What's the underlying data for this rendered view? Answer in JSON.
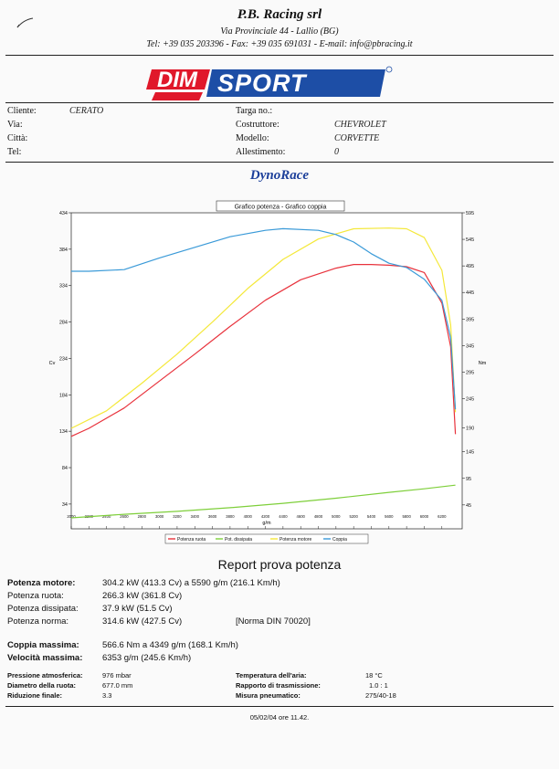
{
  "header": {
    "company": "P.B. Racing srl",
    "address": "Via Provinciale 44 - Lallio (BG)",
    "contacts": "Tel: +39 035 203396 - Fax: +39 035 691031 - E-mail: info@pbracing.it"
  },
  "logo": {
    "text": "DIMSPORT",
    "colors": {
      "red": "#e0182a",
      "blue": "#1d4ea6"
    }
  },
  "customer": {
    "fields": [
      {
        "label": "Cliente:",
        "value": "CERATO"
      },
      {
        "label": "Via:",
        "value": ""
      },
      {
        "label": "Città:",
        "value": ""
      },
      {
        "label": "Tel:",
        "value": ""
      }
    ]
  },
  "vehicle": {
    "fields": [
      {
        "label": "Targa no.:",
        "value": ""
      },
      {
        "label": "Costruttore:",
        "value": "CHEVROLET"
      },
      {
        "label": "Modello:",
        "value": "CORVETTE"
      },
      {
        "label": "Allestimento:",
        "value": "0"
      }
    ]
  },
  "section_title": "DynoRace",
  "chart_data": {
    "type": "line",
    "title": "Grafico potenza - Grafico coppia",
    "xlabel": "g/m",
    "ylabel_left": "Cv",
    "ylabel_right": "Nm",
    "x_ticks": [
      2000,
      2200,
      2400,
      2600,
      2800,
      3000,
      3200,
      3400,
      3600,
      3800,
      4000,
      4200,
      4400,
      4600,
      4800,
      5000,
      5200,
      5400,
      5600,
      5800,
      6000,
      6200
    ],
    "left_ticks": [
      434,
      384,
      334,
      284,
      234,
      184,
      134,
      84,
      34
    ],
    "right_ticks": [
      595,
      545,
      495,
      445,
      395,
      345,
      295,
      245,
      190,
      145,
      95,
      45
    ],
    "xlim": [
      2000,
      6430
    ],
    "ylim_left": [
      0,
      434
    ],
    "ylim_right": [
      0,
      595
    ],
    "grid": false,
    "legend_position": "bottom",
    "series": [
      {
        "name": "Potenza ruota",
        "axis": "left",
        "color": "#e8323c",
        "x": [
          2000,
          2200,
          2600,
          3000,
          3400,
          3800,
          4200,
          4600,
          5000,
          5200,
          5400,
          5600,
          5800,
          6000,
          6200,
          6300,
          6353
        ],
        "y": [
          127,
          138,
          166,
          203,
          240,
          278,
          314,
          342,
          358,
          363,
          363,
          362,
          360,
          352,
          310,
          250,
          130
        ]
      },
      {
        "name": "Pot. dissipata",
        "axis": "left",
        "color": "#7ecf3a",
        "x": [
          2000,
          2600,
          3200,
          3800,
          4400,
          5000,
          5600,
          6000,
          6353
        ],
        "y": [
          15,
          20,
          24,
          29,
          35,
          42,
          50,
          55,
          60
        ]
      },
      {
        "name": "Potenza motore",
        "axis": "left",
        "color": "#f4e83a",
        "x": [
          2000,
          2400,
          2800,
          3200,
          3600,
          4000,
          4400,
          4800,
          5200,
          5600,
          5800,
          6000,
          6200,
          6300,
          6353
        ],
        "y": [
          138,
          162,
          200,
          240,
          284,
          330,
          370,
          398,
          412,
          413,
          412,
          400,
          355,
          280,
          160
        ]
      },
      {
        "name": "Coppia",
        "axis": "right",
        "color": "#3a9ad8",
        "x": [
          2000,
          2200,
          2600,
          3000,
          3400,
          3800,
          4200,
          4400,
          4800,
          5000,
          5200,
          5400,
          5600,
          5800,
          6000,
          6200,
          6300,
          6353
        ],
        "y": [
          485,
          485,
          488,
          510,
          530,
          550,
          562,
          565,
          562,
          554,
          540,
          518,
          500,
          492,
          470,
          430,
          360,
          225
        ]
      }
    ]
  },
  "report": {
    "title": "Report prova potenza",
    "rows": [
      {
        "label": "Potenza motore:",
        "value": "304.2 kW (413.3 Cv) a 5590 g/m (216.1 Km/h)",
        "bold": true
      },
      {
        "label": "Potenza ruota:",
        "value": "266.3 kW (361.8 Cv)",
        "bold": false
      },
      {
        "label": "Potenza dissipata:",
        "value": "37.9 kW (51.5 Cv)",
        "bold": false
      },
      {
        "label": "Potenza norma:",
        "value": "314.6 kW (427.5 Cv)",
        "bold": false,
        "extra": "[Norma DIN 70020]"
      }
    ],
    "rows2": [
      {
        "label": "Coppia massima:",
        "value": "566.6 Nm a 4349 g/m (168.1 Km/h)"
      },
      {
        "label": "Velocità massima:",
        "value": "6353 g/m (245.6 Km/h)"
      }
    ],
    "conditions_left": [
      {
        "label": "Pressione atmosferica:",
        "value": "976 mbar"
      },
      {
        "label": "Diametro della ruota:",
        "value": "677.0 mm"
      },
      {
        "label": "Riduzione finale:",
        "value": "3.3"
      }
    ],
    "conditions_right": [
      {
        "label": "Temperatura dell'aria:",
        "value": "18 °C"
      },
      {
        "label": "Rapporto di trasmissione:",
        "value": "1.0 : 1"
      },
      {
        "label": "Misura pneumatico:",
        "value": "275/40-18"
      }
    ],
    "footer": "05/02/04 ore 11.42."
  }
}
